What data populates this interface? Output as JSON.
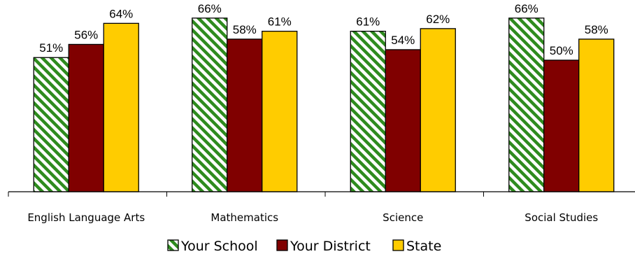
{
  "chart_data": {
    "type": "bar",
    "categories": [
      "English Language Arts",
      "Mathematics",
      "Science",
      "Social Studies"
    ],
    "series": [
      {
        "name": "Your School",
        "values": [
          51,
          66,
          61,
          66
        ],
        "labels": [
          "51%",
          "66%",
          "61%",
          "66%"
        ],
        "color": "#2e8b1e",
        "pattern": "diagonal-hatch"
      },
      {
        "name": "Your District",
        "values": [
          56,
          58,
          54,
          50
        ],
        "labels": [
          "56%",
          "58%",
          "54%",
          "50%"
        ],
        "color": "#800000"
      },
      {
        "name": "State",
        "values": [
          64,
          61,
          62,
          58
        ],
        "labels": [
          "64%",
          "61%",
          "62%",
          "58%"
        ],
        "color": "#ffcc00"
      }
    ],
    "ylim": [
      0,
      70
    ],
    "grid": false,
    "legend_position": "bottom",
    "title": "",
    "xlabel": "",
    "ylabel": ""
  }
}
